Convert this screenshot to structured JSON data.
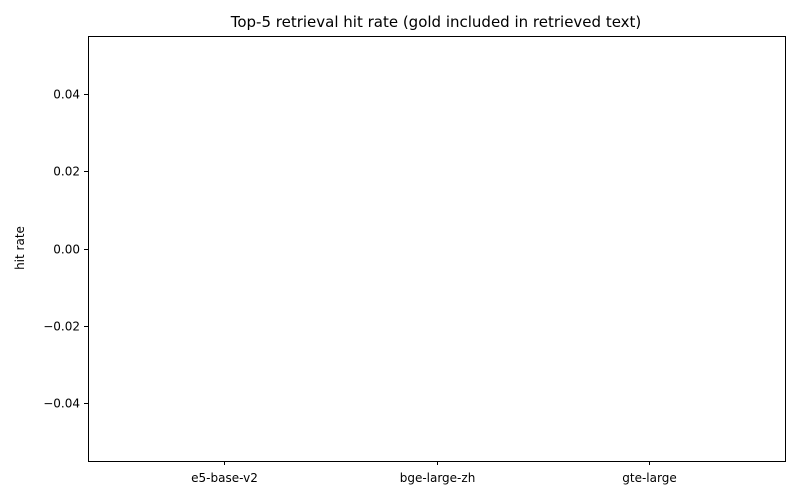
{
  "chart_data": {
    "type": "bar",
    "title": "Top-5 retrieval hit rate (gold included in retrieved text)",
    "xlabel": "",
    "ylabel": "hit rate",
    "categories": [
      "e5-base-v2",
      "bge-large-zh",
      "gte-large"
    ],
    "values": [
      0,
      0,
      0
    ],
    "ylim": [
      -0.055,
      0.055
    ],
    "yticks": [
      -0.04,
      -0.02,
      0.0,
      0.02,
      0.04
    ],
    "ytick_labels": [
      "−0.04",
      "−0.02",
      "0.00",
      "0.02",
      "0.04"
    ],
    "grid": false,
    "legend": "none",
    "colors": {
      "bar": "#1f77b4",
      "axis": "#000000",
      "background": "#ffffff"
    }
  }
}
